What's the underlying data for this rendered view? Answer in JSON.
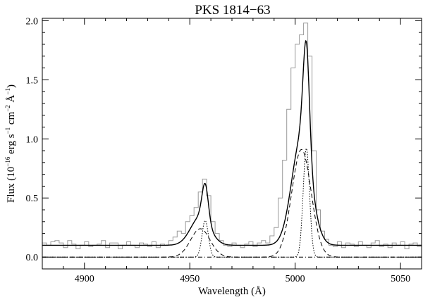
{
  "chart_data": {
    "type": "line",
    "title": "PKS 1814−63",
    "xlabel": "Wavelength (Å)",
    "ylabel": {
      "prefix": "Flux (10",
      "exp1": "−16",
      "mid1": " erg s",
      "exp2": "−1",
      "mid2": " cm",
      "exp3": "−2",
      "mid3": " Å",
      "exp4": "−1",
      "suffix": ")"
    },
    "xlim": [
      4880,
      5060
    ],
    "ylim": [
      -0.1,
      2.02
    ],
    "x_ticks": [
      {
        "v": 4900,
        "label": "4900"
      },
      {
        "v": 4950,
        "label": "4950"
      },
      {
        "v": 5000,
        "label": "5000"
      },
      {
        "v": 5050,
        "label": "5050"
      }
    ],
    "y_ticks": [
      {
        "v": 0.0,
        "label": "0.0"
      },
      {
        "v": 0.5,
        "label": "0.5"
      },
      {
        "v": 1.0,
        "label": "1.0"
      },
      {
        "v": 1.5,
        "label": "1.5"
      },
      {
        "v": 2.0,
        "label": "2.0"
      }
    ],
    "continuum": 0.1,
    "model": {
      "broad": {
        "c1": 5003.0,
        "c2": 4955.0,
        "sigma": 4.6,
        "amp1": 0.91,
        "amp2": 0.24
      },
      "narrow": {
        "c1": 5005.3,
        "c2": 4957.3,
        "sigma": 1.5,
        "amp1": 0.92,
        "amp2": 0.31
      }
    },
    "observed": {
      "x": [
        4880,
        4882,
        4884,
        4886,
        4888,
        4890,
        4892,
        4894,
        4896,
        4898,
        4900,
        4902,
        4904,
        4906,
        4908,
        4910,
        4912,
        4914,
        4916,
        4918,
        4920,
        4922,
        4924,
        4926,
        4928,
        4930,
        4932,
        4934,
        4936,
        4938,
        4940,
        4942,
        4944,
        4946,
        4948,
        4950,
        4952,
        4954,
        4956,
        4958,
        4960,
        4962,
        4964,
        4966,
        4968,
        4970,
        4972,
        4974,
        4976,
        4978,
        4980,
        4982,
        4984,
        4986,
        4988,
        4990,
        4992,
        4994,
        4996,
        4998,
        5000,
        5002,
        5004,
        5006,
        5008,
        5010,
        5012,
        5014,
        5016,
        5018,
        5020,
        5022,
        5024,
        5026,
        5028,
        5030,
        5032,
        5034,
        5036,
        5038,
        5040,
        5042,
        5044,
        5046,
        5048,
        5050,
        5052,
        5054,
        5056,
        5058
      ],
      "y": [
        0.12,
        0.1,
        0.13,
        0.14,
        0.12,
        0.08,
        0.14,
        0.11,
        0.07,
        0.1,
        0.13,
        0.09,
        0.1,
        0.11,
        0.14,
        0.08,
        0.12,
        0.12,
        0.07,
        0.1,
        0.13,
        0.1,
        0.08,
        0.12,
        0.11,
        0.09,
        0.13,
        0.08,
        0.11,
        0.1,
        0.14,
        0.17,
        0.22,
        0.2,
        0.3,
        0.35,
        0.42,
        0.55,
        0.66,
        0.52,
        0.3,
        0.2,
        0.14,
        0.1,
        0.09,
        0.12,
        0.1,
        0.08,
        0.11,
        0.13,
        0.09,
        0.12,
        0.14,
        0.12,
        0.18,
        0.25,
        0.5,
        0.82,
        1.25,
        1.6,
        1.8,
        1.88,
        1.98,
        1.7,
        0.9,
        0.4,
        0.22,
        0.15,
        0.1,
        0.09,
        0.13,
        0.08,
        0.12,
        0.11,
        0.09,
        0.13,
        0.1,
        0.08,
        0.12,
        0.14,
        0.09,
        0.11,
        0.08,
        0.12,
        0.1,
        0.13,
        0.07,
        0.11,
        0.12,
        0.09
      ]
    }
  }
}
